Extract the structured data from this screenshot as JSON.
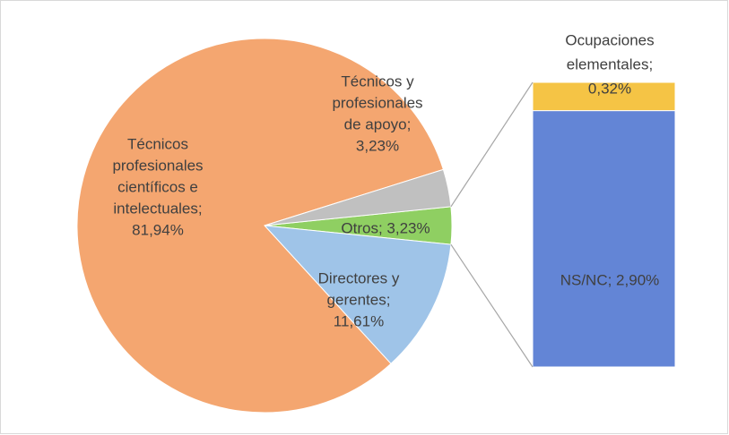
{
  "chart_data": {
    "type": "pie_of_bar",
    "values": [
      3.23,
      11.61,
      81.94,
      3.23
    ],
    "colors": [
      "#8fcf62",
      "#9fc4e8",
      "#f4a670",
      "#c0c0c0"
    ],
    "value_labels": [
      [
        "Otros; 3,23%"
      ],
      [
        "Directores y",
        "gerentes;",
        "11,61%"
      ],
      [
        "Técnicos",
        "profesionales",
        "científicos e",
        "intelectuales;",
        "81,94%"
      ],
      [
        "Técnicos y",
        "profesionales",
        "de apoyo;",
        "3,23%"
      ]
    ],
    "bar": {
      "values": [
        2.9,
        0.32
      ],
      "colors": [
        "#6385d6",
        "#f5c445"
      ],
      "value_labels": [
        [
          "NS/NC; 2,90%"
        ],
        [
          "Ocupaciones",
          "elementales;",
          "0,32%"
        ]
      ]
    }
  }
}
